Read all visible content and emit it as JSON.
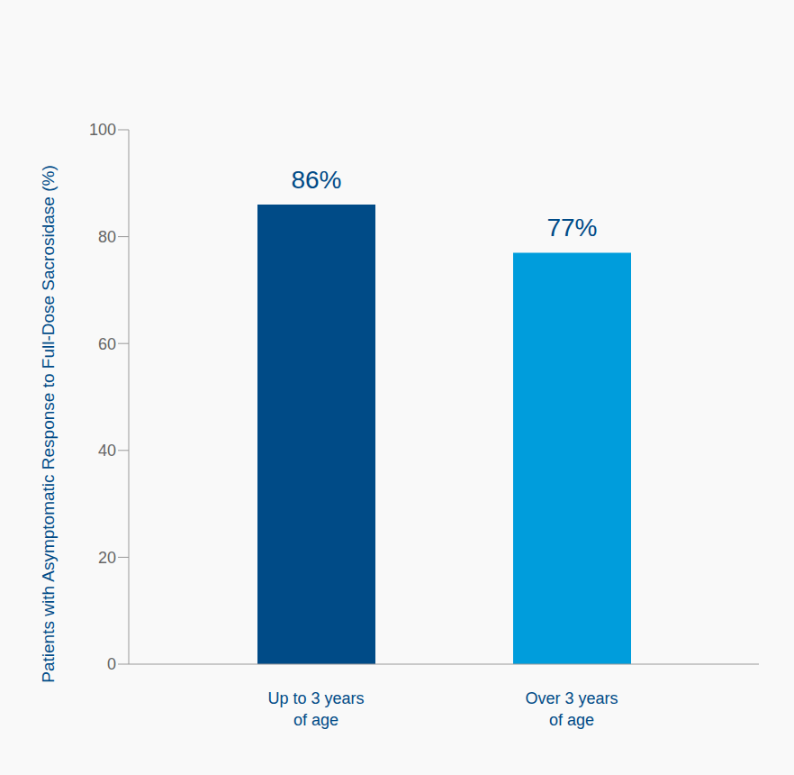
{
  "chart_data": {
    "type": "bar",
    "y_label": "Patients with Asymptomatic Response to Full-Dose Sacrosidase (%)",
    "categories": [
      "Up to 3 years of age",
      "Over 3 years of age"
    ],
    "values": [
      86,
      77
    ],
    "value_labels": [
      "86%",
      "77%"
    ],
    "colors": [
      "#004b87",
      "#009ddc"
    ],
    "ylim": [
      0,
      100
    ],
    "yticks": [
      0,
      20,
      40,
      60,
      80,
      100
    ],
    "grid": false,
    "data_labels": true
  }
}
